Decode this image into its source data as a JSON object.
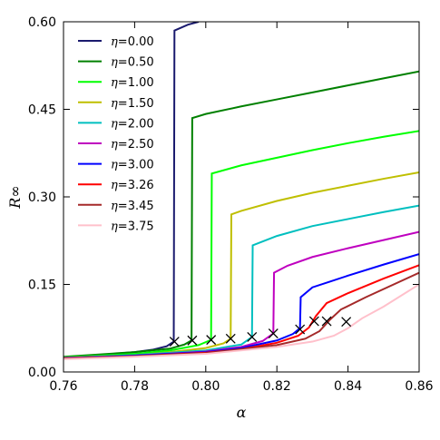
{
  "chart_data": {
    "type": "line",
    "xlabel": "α",
    "ylabel": "R∞",
    "xlim": [
      0.76,
      0.86
    ],
    "ylim": [
      0.0,
      0.6
    ],
    "x_ticks": [
      "0.76",
      "0.78",
      "0.80",
      "0.82",
      "0.84",
      "0.86"
    ],
    "y_ticks": [
      "0.00",
      "0.15",
      "0.30",
      "0.45",
      "0.60"
    ],
    "grid": false,
    "legend_position": "top-left",
    "series": [
      {
        "name": "η=0.00",
        "eta_symbol": "η",
        "eta_value": "=0.00",
        "color": "#1a1a6e",
        "points": [
          [
            0.76,
            0.025
          ],
          [
            0.77,
            0.029
          ],
          [
            0.78,
            0.034
          ],
          [
            0.785,
            0.038
          ],
          [
            0.789,
            0.044
          ],
          [
            0.791,
            0.052
          ],
          [
            0.7912,
            0.585
          ],
          [
            0.795,
            0.595
          ],
          [
            0.798,
            0.6
          ]
        ]
      },
      {
        "name": "η=0.50",
        "eta_symbol": "η",
        "eta_value": "=0.50",
        "color": "#008000",
        "points": [
          [
            0.76,
            0.026
          ],
          [
            0.77,
            0.03
          ],
          [
            0.78,
            0.034
          ],
          [
            0.79,
            0.04
          ],
          [
            0.794,
            0.047
          ],
          [
            0.796,
            0.054
          ],
          [
            0.7962,
            0.435
          ],
          [
            0.8,
            0.442
          ],
          [
            0.81,
            0.455
          ],
          [
            0.82,
            0.467
          ],
          [
            0.83,
            0.479
          ],
          [
            0.84,
            0.491
          ],
          [
            0.85,
            0.503
          ],
          [
            0.86,
            0.515
          ]
        ]
      },
      {
        "name": "η=1.00",
        "eta_symbol": "η",
        "eta_value": "=1.00",
        "color": "#00ff00",
        "points": [
          [
            0.76,
            0.025
          ],
          [
            0.78,
            0.031
          ],
          [
            0.79,
            0.037
          ],
          [
            0.798,
            0.046
          ],
          [
            0.8015,
            0.055
          ],
          [
            0.8017,
            0.34
          ],
          [
            0.81,
            0.354
          ],
          [
            0.82,
            0.367
          ],
          [
            0.83,
            0.38
          ],
          [
            0.84,
            0.392
          ],
          [
            0.85,
            0.403
          ],
          [
            0.86,
            0.413
          ]
        ]
      },
      {
        "name": "η=1.50",
        "eta_symbol": "η",
        "eta_value": "=1.50",
        "color": "#bfbf00",
        "points": [
          [
            0.76,
            0.024
          ],
          [
            0.78,
            0.029
          ],
          [
            0.79,
            0.034
          ],
          [
            0.8,
            0.041
          ],
          [
            0.805,
            0.049
          ],
          [
            0.807,
            0.057
          ],
          [
            0.8072,
            0.27
          ],
          [
            0.81,
            0.276
          ],
          [
            0.82,
            0.293
          ],
          [
            0.83,
            0.307
          ],
          [
            0.84,
            0.319
          ],
          [
            0.85,
            0.331
          ],
          [
            0.86,
            0.342
          ]
        ]
      },
      {
        "name": "η=2.00",
        "eta_symbol": "η",
        "eta_value": "=2.00",
        "color": "#00bfbf",
        "points": [
          [
            0.76,
            0.024
          ],
          [
            0.78,
            0.029
          ],
          [
            0.8,
            0.037
          ],
          [
            0.81,
            0.047
          ],
          [
            0.813,
            0.06
          ],
          [
            0.8132,
            0.217
          ],
          [
            0.82,
            0.233
          ],
          [
            0.83,
            0.25
          ],
          [
            0.84,
            0.262
          ],
          [
            0.85,
            0.274
          ],
          [
            0.86,
            0.285
          ]
        ]
      },
      {
        "name": "η=2.50",
        "eta_symbol": "η",
        "eta_value": "=2.50",
        "color": "#bf00bf",
        "points": [
          [
            0.76,
            0.024
          ],
          [
            0.78,
            0.028
          ],
          [
            0.8,
            0.035
          ],
          [
            0.81,
            0.043
          ],
          [
            0.816,
            0.053
          ],
          [
            0.819,
            0.066
          ],
          [
            0.8192,
            0.17
          ],
          [
            0.823,
            0.182
          ],
          [
            0.83,
            0.197
          ],
          [
            0.84,
            0.212
          ],
          [
            0.85,
            0.226
          ],
          [
            0.86,
            0.24
          ]
        ]
      },
      {
        "name": "η=3.00",
        "eta_symbol": "η",
        "eta_value": "=3.00",
        "color": "#0000ff",
        "points": [
          [
            0.76,
            0.023
          ],
          [
            0.78,
            0.028
          ],
          [
            0.8,
            0.034
          ],
          [
            0.81,
            0.041
          ],
          [
            0.82,
            0.054
          ],
          [
            0.8245,
            0.065
          ],
          [
            0.8265,
            0.075
          ],
          [
            0.8267,
            0.128
          ],
          [
            0.83,
            0.145
          ],
          [
            0.835,
            0.155
          ],
          [
            0.84,
            0.165
          ],
          [
            0.85,
            0.184
          ],
          [
            0.86,
            0.202
          ]
        ]
      },
      {
        "name": "η=3.26",
        "eta_symbol": "η",
        "eta_value": "=3.26",
        "color": "#ff0000",
        "points": [
          [
            0.76,
            0.023
          ],
          [
            0.78,
            0.027
          ],
          [
            0.8,
            0.033
          ],
          [
            0.81,
            0.039
          ],
          [
            0.82,
            0.05
          ],
          [
            0.826,
            0.062
          ],
          [
            0.829,
            0.076
          ],
          [
            0.831,
            0.096
          ],
          [
            0.834,
            0.118
          ],
          [
            0.84,
            0.135
          ],
          [
            0.85,
            0.16
          ],
          [
            0.86,
            0.183
          ]
        ]
      },
      {
        "name": "η=3.45",
        "eta_symbol": "η",
        "eta_value": "=3.45",
        "color": "#a52a2a",
        "points": [
          [
            0.76,
            0.023
          ],
          [
            0.78,
            0.027
          ],
          [
            0.8,
            0.032
          ],
          [
            0.82,
            0.046
          ],
          [
            0.828,
            0.057
          ],
          [
            0.832,
            0.07
          ],
          [
            0.835,
            0.09
          ],
          [
            0.838,
            0.107
          ],
          [
            0.845,
            0.128
          ],
          [
            0.86,
            0.17
          ]
        ]
      },
      {
        "name": "η=3.75",
        "eta_symbol": "η",
        "eta_value": "=3.75",
        "color": "#ffc0cb",
        "points": [
          [
            0.76,
            0.022
          ],
          [
            0.78,
            0.026
          ],
          [
            0.8,
            0.031
          ],
          [
            0.82,
            0.043
          ],
          [
            0.83,
            0.052
          ],
          [
            0.836,
            0.062
          ],
          [
            0.84,
            0.075
          ],
          [
            0.844,
            0.092
          ],
          [
            0.85,
            0.112
          ],
          [
            0.86,
            0.15
          ]
        ]
      }
    ],
    "markers": {
      "symbol": "x",
      "color": "#000000",
      "points": [
        [
          0.7912,
          0.052
        ],
        [
          0.7962,
          0.054
        ],
        [
          0.8015,
          0.055
        ],
        [
          0.807,
          0.057
        ],
        [
          0.813,
          0.06
        ],
        [
          0.819,
          0.066
        ],
        [
          0.8265,
          0.073
        ],
        [
          0.8305,
          0.087
        ],
        [
          0.834,
          0.087
        ],
        [
          0.8395,
          0.086
        ]
      ]
    }
  }
}
